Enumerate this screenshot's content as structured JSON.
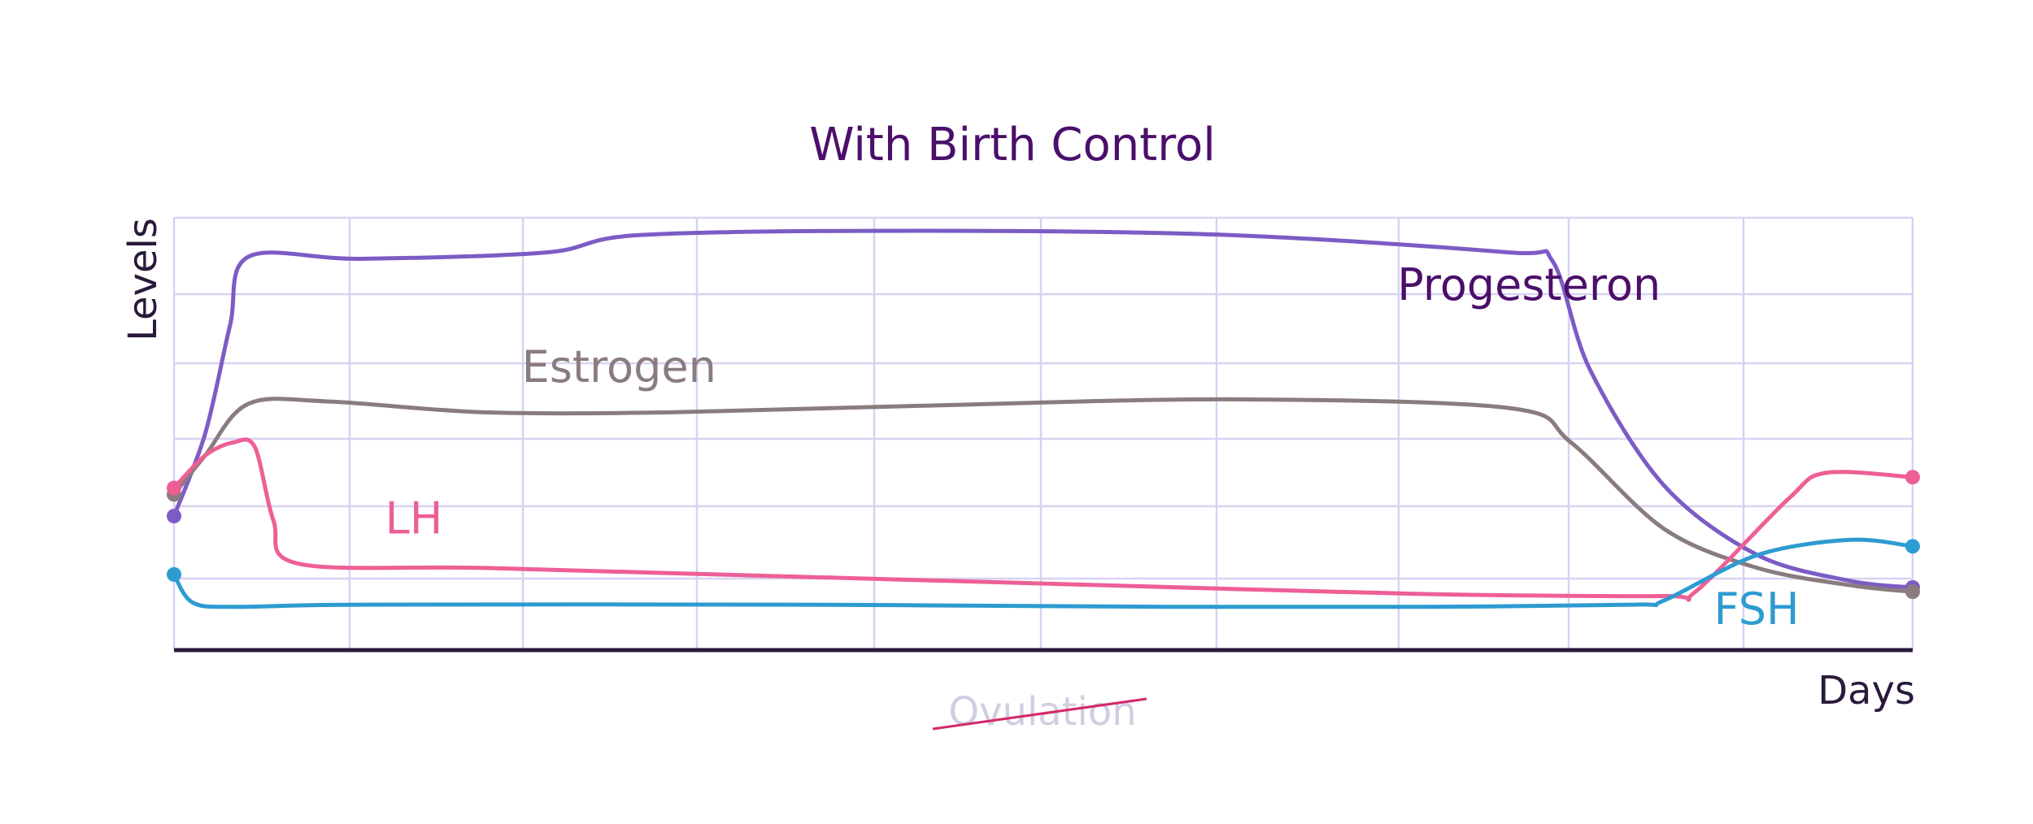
{
  "chart_data": {
    "type": "line",
    "title": "With Birth Control",
    "xlabel": "Days",
    "ylabel": "Levels",
    "xlim": [
      0,
      28
    ],
    "ylim": [
      0,
      100
    ],
    "grid": true,
    "legend": "none",
    "annotation": {
      "text": "Ovulation",
      "struck_through": true,
      "x": 14
    },
    "colors": {
      "title": "#4b0f6b",
      "grid": "#d8d2f2",
      "axis": "#2a1a3a",
      "annotation_text": "#d2cde0",
      "strike": "#d6276a"
    },
    "series": [
      {
        "name": "Progesteron",
        "color": "#7c5cc4",
        "label_color": "#4b0f6b",
        "label_at": [
          19.7,
          81
        ],
        "x": [
          0,
          0.5,
          0.9,
          1.2,
          3,
          6,
          7.5,
          12,
          17,
          21.5,
          22.2,
          22.8,
          24,
          25.5,
          27,
          28
        ],
        "y": [
          31,
          50,
          75,
          91,
          90.5,
          92,
          96,
          97,
          96,
          92,
          90,
          65,
          38,
          22,
          16,
          14.5
        ]
      },
      {
        "name": "Estrogen",
        "color": "#8a7c7e",
        "label_color": "#8a7c7e",
        "label_at": [
          5.6,
          62
        ],
        "x": [
          0,
          0.5,
          1.2,
          2.5,
          5,
          8,
          12,
          17,
          21.5,
          22.5,
          24,
          25.5,
          27,
          28
        ],
        "y": [
          36,
          45,
          57,
          57.5,
          55,
          55,
          56.5,
          58,
          56,
          48,
          28,
          19,
          15,
          13.5
        ]
      },
      {
        "name": "LH",
        "color": "#ee5f96",
        "label_color": "#ee5f96",
        "label_at": [
          3.4,
          27
        ],
        "x": [
          0,
          0.5,
          0.95,
          1.3,
          1.6,
          2,
          5,
          10,
          15,
          20,
          24,
          24.5,
          26,
          26.6,
          28
        ],
        "y": [
          37.5,
          45,
          48,
          47,
          30,
          20,
          19,
          17,
          15,
          13,
          12.5,
          13.5,
          35,
          41,
          40
        ]
      },
      {
        "name": "FSH",
        "color": "#2e9bd1",
        "label_color": "#2e9bd1",
        "label_at": [
          24.8,
          6
        ],
        "x": [
          0,
          0.3,
          1,
          3,
          10,
          16,
          20,
          23.5,
          24,
          25.5,
          27,
          28
        ],
        "y": [
          17.5,
          11,
          10,
          10.5,
          10.5,
          10,
          10,
          10.5,
          11.5,
          22,
          25.5,
          24
        ]
      }
    ]
  }
}
